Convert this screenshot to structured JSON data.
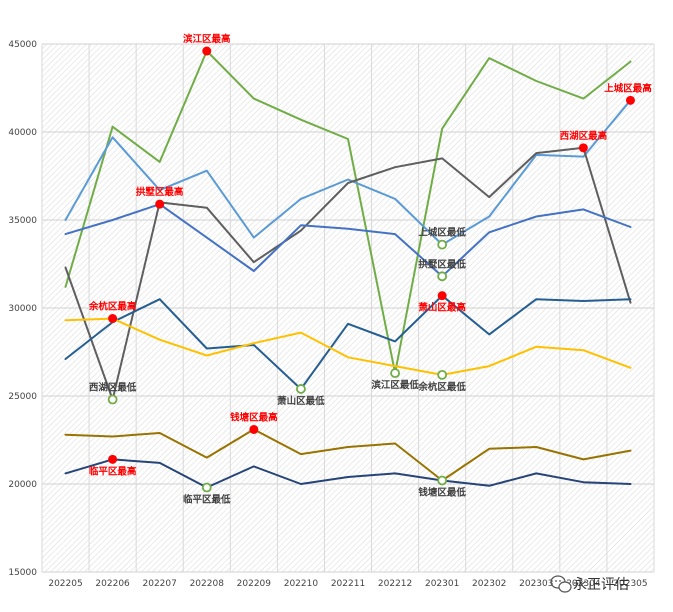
{
  "chart_data": {
    "type": "line",
    "title": "",
    "xlabel": "",
    "ylabel": "",
    "ylim": [
      15000,
      45000
    ],
    "yticks": [
      "15000",
      "20000",
      "25000",
      "30000",
      "35000",
      "40000",
      "45000"
    ],
    "categories": [
      "202205",
      "202206",
      "202207",
      "202208",
      "202209",
      "202210",
      "202211",
      "202212",
      "202301",
      "202302",
      "202303",
      "202304",
      "202305"
    ],
    "grid": true,
    "legend": "none",
    "series": [
      {
        "key": "binjiang",
        "color": "#70ad47",
        "values": [
          31200,
          40300,
          38300,
          44600,
          41900,
          40700,
          39600,
          26300,
          40200,
          44200,
          42900,
          41900,
          44000
        ]
      },
      {
        "key": "shangcheng",
        "color": "#5b9bd5",
        "values": [
          35000,
          39700,
          36700,
          37800,
          34000,
          36200,
          37300,
          36200,
          33600,
          35200,
          38700,
          38600,
          41800
        ]
      },
      {
        "key": "xihu",
        "color": "#5f5f5f",
        "values": [
          32300,
          24800,
          36000,
          35700,
          32600,
          34400,
          37100,
          38000,
          38500,
          36300,
          38800,
          39100,
          30300
        ]
      },
      {
        "key": "gongshu",
        "color": "#4472c4",
        "values": [
          34200,
          35000,
          35900,
          34000,
          32100,
          34700,
          34500,
          34200,
          31800,
          34300,
          35200,
          35600,
          34600
        ]
      },
      {
        "key": "xiaoshan",
        "color": "#255e91",
        "values": [
          27100,
          29200,
          30500,
          27700,
          27900,
          25400,
          29100,
          28100,
          30700,
          28500,
          30500,
          30400,
          30500
        ]
      },
      {
        "key": "yuhang",
        "color": "#ffc000",
        "values": [
          29300,
          29400,
          28200,
          27300,
          28000,
          28600,
          27200,
          26700,
          26200,
          26700,
          27800,
          27600,
          26600
        ]
      },
      {
        "key": "qiantang",
        "color": "#997300",
        "values": [
          22800,
          22700,
          22900,
          21500,
          23100,
          21700,
          22100,
          22300,
          20200,
          22000,
          22100,
          21400,
          21900
        ]
      },
      {
        "key": "linping",
        "color": "#264478",
        "values": [
          20600,
          21400,
          21200,
          19800,
          21000,
          20000,
          20400,
          20600,
          20200,
          19900,
          20600,
          20100,
          20000
        ]
      }
    ],
    "annotations": [
      {
        "series": "binjiang",
        "index": 3,
        "text": "滨江区最高",
        "kind": "max",
        "pos": "above"
      },
      {
        "series": "binjiang",
        "index": 7,
        "text": "滨江区最低",
        "kind": "min",
        "pos": "below"
      },
      {
        "series": "shangcheng",
        "index": 12,
        "text": "上城区最高",
        "kind": "max",
        "pos": "above"
      },
      {
        "series": "shangcheng",
        "index": 8,
        "text": "上城区最低",
        "kind": "min",
        "pos": "above"
      },
      {
        "series": "xihu",
        "index": 11,
        "text": "西湖区最高",
        "kind": "max",
        "pos": "above"
      },
      {
        "series": "xihu",
        "index": 1,
        "text": "西湖区最低",
        "kind": "min",
        "pos": "above"
      },
      {
        "series": "gongshu",
        "index": 2,
        "text": "拱墅区最高",
        "kind": "max",
        "pos": "above"
      },
      {
        "series": "gongshu",
        "index": 8,
        "text": "拱墅区最低",
        "kind": "min",
        "pos": "above"
      },
      {
        "series": "xiaoshan",
        "index": 8,
        "text": "萧山区最高",
        "kind": "max",
        "pos": "below"
      },
      {
        "series": "xiaoshan",
        "index": 5,
        "text": "萧山区最低",
        "kind": "min",
        "pos": "below"
      },
      {
        "series": "yuhang",
        "index": 1,
        "text": "余杭区最高",
        "kind": "max",
        "pos": "above"
      },
      {
        "series": "yuhang",
        "index": 8,
        "text": "余杭区最低",
        "kind": "min",
        "pos": "below"
      },
      {
        "series": "qiantang",
        "index": 4,
        "text": "钱塘区最高",
        "kind": "max",
        "pos": "above"
      },
      {
        "series": "qiantang",
        "index": 8,
        "text": "钱塘区最低",
        "kind": "min",
        "pos": "below"
      },
      {
        "series": "linping",
        "index": 1,
        "text": "临平区最高",
        "kind": "max",
        "pos": "below"
      },
      {
        "series": "linping",
        "index": 3,
        "text": "临平区最低",
        "kind": "min",
        "pos": "below"
      }
    ],
    "max_marker_color": "#ff0000",
    "min_marker_color": "#70ad47",
    "max_label_color": "#ff0000",
    "min_label_color": "#404040"
  },
  "watermark": {
    "text": "永正评估",
    "icon": "wechat-icon"
  }
}
